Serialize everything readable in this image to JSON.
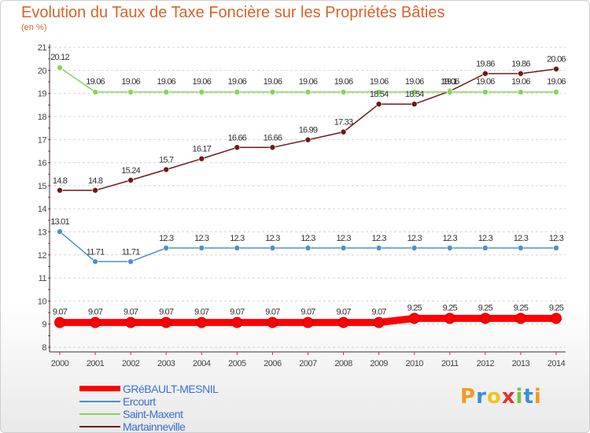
{
  "title": "Evolution du Taux de Taxe Foncière sur les Propriétés Bâties",
  "unit": "(en %)",
  "logo": [
    "P",
    "r",
    "o",
    "x",
    "i",
    "t",
    "i"
  ],
  "chart_data": {
    "type": "line",
    "title": "Evolution du Taux de Taxe Foncière sur les Propriétés Bâties",
    "ylabel": "(en %)",
    "ylim": [
      8,
      21
    ],
    "yticks": [
      8,
      9,
      10,
      11,
      12,
      13,
      14,
      15,
      16,
      17,
      18,
      19,
      20,
      21
    ],
    "x": [
      2000,
      2001,
      2002,
      2003,
      2004,
      2005,
      2006,
      2007,
      2008,
      2009,
      2010,
      2011,
      2012,
      2013,
      2014
    ],
    "series": [
      {
        "name": "GRéBAULT-MESNIL",
        "color": "#ff0000",
        "values": [
          9.07,
          9.07,
          9.07,
          9.07,
          9.07,
          9.07,
          9.07,
          9.07,
          9.07,
          9.07,
          9.25,
          9.25,
          9.25,
          9.25,
          9.25
        ]
      },
      {
        "name": "Ercourt",
        "color": "#4f8fd0",
        "values": [
          13.01,
          11.71,
          11.71,
          12.3,
          12.3,
          12.3,
          12.3,
          12.3,
          12.3,
          12.3,
          12.3,
          12.3,
          12.3,
          12.3,
          12.3
        ]
      },
      {
        "name": "Saint-Maxent",
        "color": "#86d45a",
        "values": [
          20.12,
          19.06,
          19.06,
          19.06,
          19.06,
          19.06,
          19.06,
          19.06,
          19.06,
          19.06,
          19.06,
          19.06,
          19.06,
          19.06,
          19.06
        ]
      },
      {
        "name": "Martainneville",
        "color": "#6b1a1a",
        "values": [
          14.8,
          14.8,
          15.24,
          15.7,
          16.17,
          16.66,
          16.66,
          16.99,
          17.33,
          18.54,
          18.54,
          19.1,
          19.86,
          19.86,
          20.06
        ]
      }
    ],
    "data_labels": [
      [
        "9.07",
        "9.07",
        "9.07",
        "9.07",
        "9.07",
        "9.07",
        "9.07",
        "9.07",
        "9.07",
        "9.07",
        "9.25",
        "9.25",
        "9.25",
        "9.25",
        "9.25"
      ],
      [
        "13.01",
        "11.71",
        "11.71",
        "12.3",
        "12.3",
        "12.3",
        "12.3",
        "12.3",
        "12.3",
        "12.3",
        "12.3",
        "12.3",
        "12.3",
        "12.3",
        "12.3"
      ],
      [
        "20.12",
        "19.06",
        "19.06",
        "19.06",
        "19.06",
        "19.06",
        "19.06",
        "19.06",
        "19.06",
        "19.06",
        "19.06",
        "19.06",
        "19.06",
        "19.06",
        "19.06"
      ],
      [
        "14.8",
        "14.8",
        "15.24",
        "15.7",
        "16.17",
        "16.66",
        "16.66",
        "16.99",
        "17.33",
        "18.54",
        "18.54",
        "19.1",
        "19.86",
        "19.86",
        "20.06"
      ]
    ],
    "legend": "bottom-left",
    "grid": "horizontal dashed"
  }
}
